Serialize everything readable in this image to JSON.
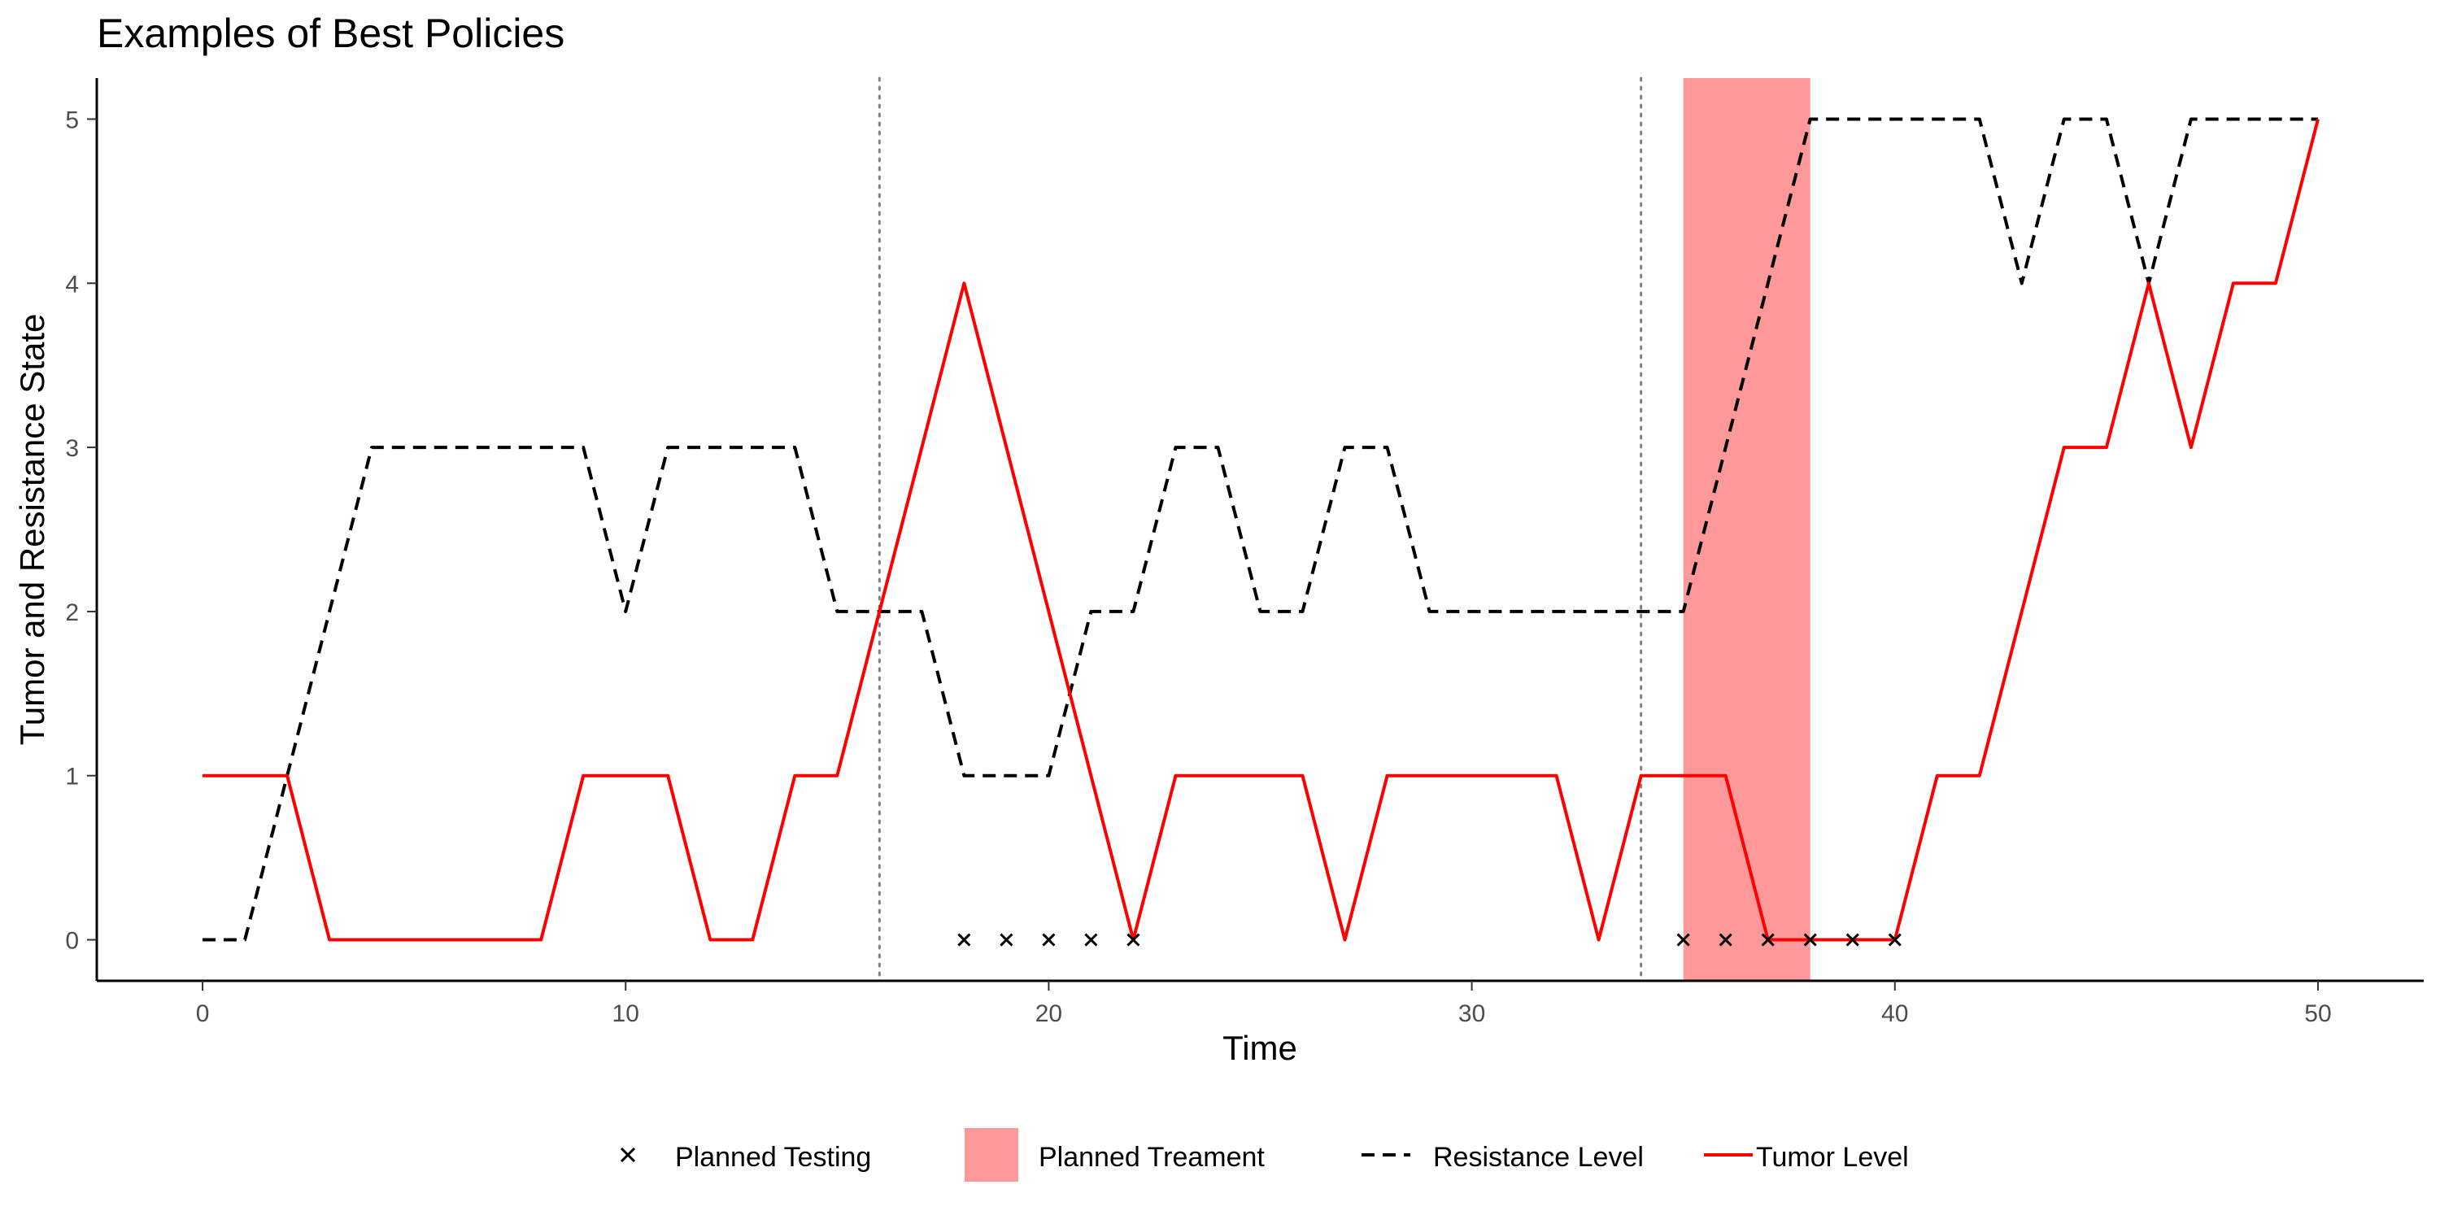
{
  "chart_data": {
    "type": "line",
    "title": "Examples of Best Policies",
    "xlabel": "Time",
    "ylabel": "Tumor and Resistance State",
    "xlim": [
      -2.5,
      52.5
    ],
    "ylim": [
      -0.25,
      5.25
    ],
    "x_ticks": [
      0,
      10,
      20,
      30,
      40,
      50
    ],
    "y_ticks": [
      0,
      1,
      2,
      3,
      4,
      5
    ],
    "grid": false,
    "legend_position": "bottom",
    "series": [
      {
        "name": "Resistance Level",
        "style": "dashed",
        "color": "#000000",
        "x": [
          0,
          1,
          2,
          3,
          4,
          5,
          6,
          7,
          8,
          9,
          10,
          11,
          12,
          13,
          14,
          15,
          16,
          17,
          18,
          19,
          20,
          21,
          22,
          23,
          24,
          25,
          26,
          27,
          28,
          29,
          30,
          31,
          32,
          33,
          34,
          35,
          36,
          37,
          38,
          39,
          40,
          41,
          42,
          43,
          44,
          45,
          46,
          47,
          48,
          49,
          50
        ],
        "y": [
          0,
          0,
          1,
          2,
          3,
          3,
          3,
          3,
          3,
          3,
          2,
          3,
          3,
          3,
          3,
          2,
          2,
          2,
          1,
          1,
          1,
          2,
          2,
          3,
          3,
          2,
          2,
          3,
          3,
          2,
          2,
          2,
          2,
          2,
          2,
          2,
          3,
          4,
          5,
          5,
          5,
          5,
          5,
          4,
          5,
          5,
          4,
          5,
          5,
          5,
          5
        ]
      },
      {
        "name": "Tumor Level",
        "style": "solid",
        "color": "#ff0000",
        "x": [
          0,
          1,
          2,
          3,
          4,
          5,
          6,
          7,
          8,
          9,
          10,
          11,
          12,
          13,
          14,
          15,
          16,
          17,
          18,
          19,
          20,
          21,
          22,
          23,
          24,
          25,
          26,
          27,
          28,
          29,
          30,
          31,
          32,
          33,
          34,
          35,
          36,
          37,
          38,
          39,
          40,
          41,
          42,
          43,
          44,
          45,
          46,
          47,
          48,
          49,
          50
        ],
        "y": [
          1,
          1,
          1,
          0,
          0,
          0,
          0,
          0,
          0,
          1,
          1,
          1,
          0,
          0,
          1,
          1,
          2,
          3,
          4,
          3,
          2,
          1,
          0,
          1,
          1,
          1,
          1,
          0,
          1,
          1,
          1,
          1,
          1,
          0,
          1,
          1,
          1,
          0,
          0,
          0,
          0,
          1,
          1,
          2,
          3,
          3,
          4,
          3,
          4,
          4,
          5
        ]
      }
    ],
    "planned_testing": {
      "name": "Planned Testing",
      "marker": "x",
      "x": [
        18,
        19,
        20,
        21,
        22,
        35,
        36,
        37,
        38,
        39,
        40
      ],
      "y": [
        0,
        0,
        0,
        0,
        0,
        0,
        0,
        0,
        0,
        0,
        0
      ]
    },
    "planned_treatment": {
      "name": "Planned Treament",
      "color": "#ff9999",
      "x_start": 35,
      "x_end": 38
    },
    "vertical_reference_lines": {
      "style": "dotted",
      "color": "#808080",
      "x": [
        16,
        34
      ]
    },
    "legend": [
      {
        "label": "Planned Testing",
        "kind": "cross"
      },
      {
        "label": "Planned Treament",
        "kind": "fill"
      },
      {
        "label": "Resistance Level",
        "kind": "dashed"
      },
      {
        "label": "Tumor Level",
        "kind": "solid"
      }
    ]
  }
}
